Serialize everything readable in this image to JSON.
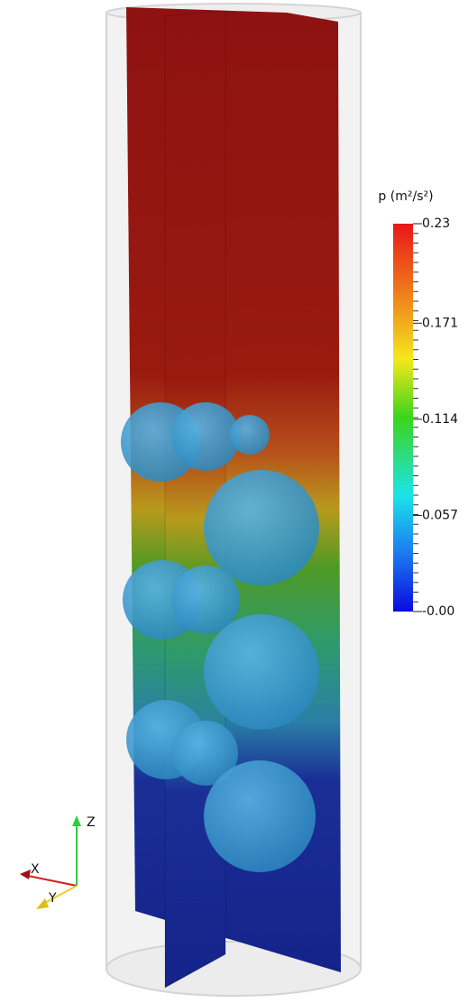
{
  "colorbar": {
    "title": "p (m²/s²)",
    "ticks": [
      0.23,
      0.171,
      0.114,
      0.057,
      {
        "value": 0,
        "label": "-0.00"
      }
    ]
  },
  "axes": {
    "z": "Z",
    "x": "X",
    "y": "Y"
  }
}
